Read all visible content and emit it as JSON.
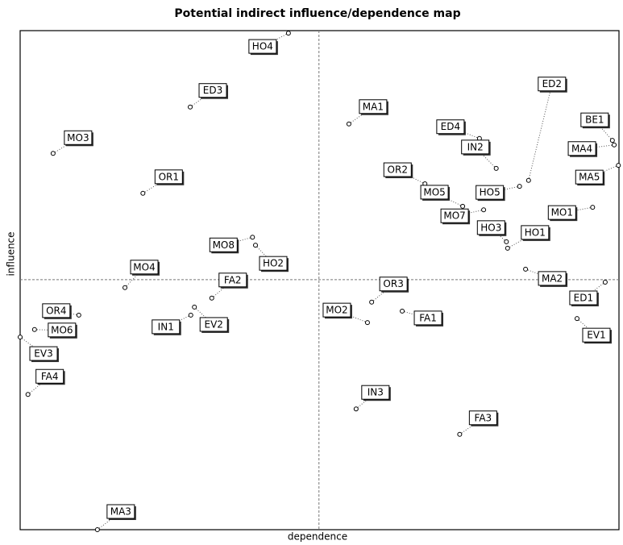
{
  "chart_data": {
    "type": "scatter",
    "title": "Potential indirect influence/dependence map",
    "xlabel": "dependence",
    "ylabel": "influence",
    "labels": [
      "HO4",
      "ED3",
      "MO3",
      "OR1",
      "MA1",
      "ED2",
      "ED4",
      "IN2",
      "BE1",
      "MA4",
      "MA5",
      "OR2",
      "MO5",
      "HO5",
      "MO7",
      "HO3",
      "HO1",
      "MO1",
      "MO8",
      "HO2",
      "MO4",
      "FA2",
      "OR3",
      "MA2",
      "ED1",
      "OR4",
      "MO6",
      "IN1",
      "EV2",
      "MO2",
      "FA1",
      "EV1",
      "EV3",
      "FA4",
      "IN3",
      "FA3",
      "MA3"
    ],
    "x": [
      44.8,
      28.4,
      5.5,
      20.5,
      54.9,
      84.9,
      76.7,
      79.5,
      98.9,
      99.2,
      99.9,
      67.6,
      73.9,
      83.4,
      77.4,
      81.2,
      81.4,
      95.6,
      38.8,
      39.3,
      17.5,
      32.0,
      58.7,
      84.4,
      97.7,
      9.8,
      2.4,
      28.5,
      29.1,
      58.0,
      63.8,
      93.0,
      0,
      1.3,
      56.1,
      73.4,
      12.9
    ],
    "y": [
      99.5,
      84.7,
      75.4,
      67.4,
      81.3,
      70.0,
      78.4,
      72.4,
      78.0,
      77.1,
      73.0,
      69.3,
      64.8,
      68.8,
      64.1,
      57.7,
      56.4,
      64.6,
      58.6,
      57.0,
      48.5,
      46.4,
      45.6,
      52.2,
      49.6,
      43.0,
      40.1,
      43.0,
      44.6,
      41.5,
      43.8,
      42.3,
      38.6,
      27.1,
      24.2,
      19.1,
      0
    ],
    "xlim": [
      0,
      100
    ],
    "ylim": [
      0,
      100
    ],
    "xref": 49.9,
    "yref": 50.1,
    "color": "#000000"
  }
}
